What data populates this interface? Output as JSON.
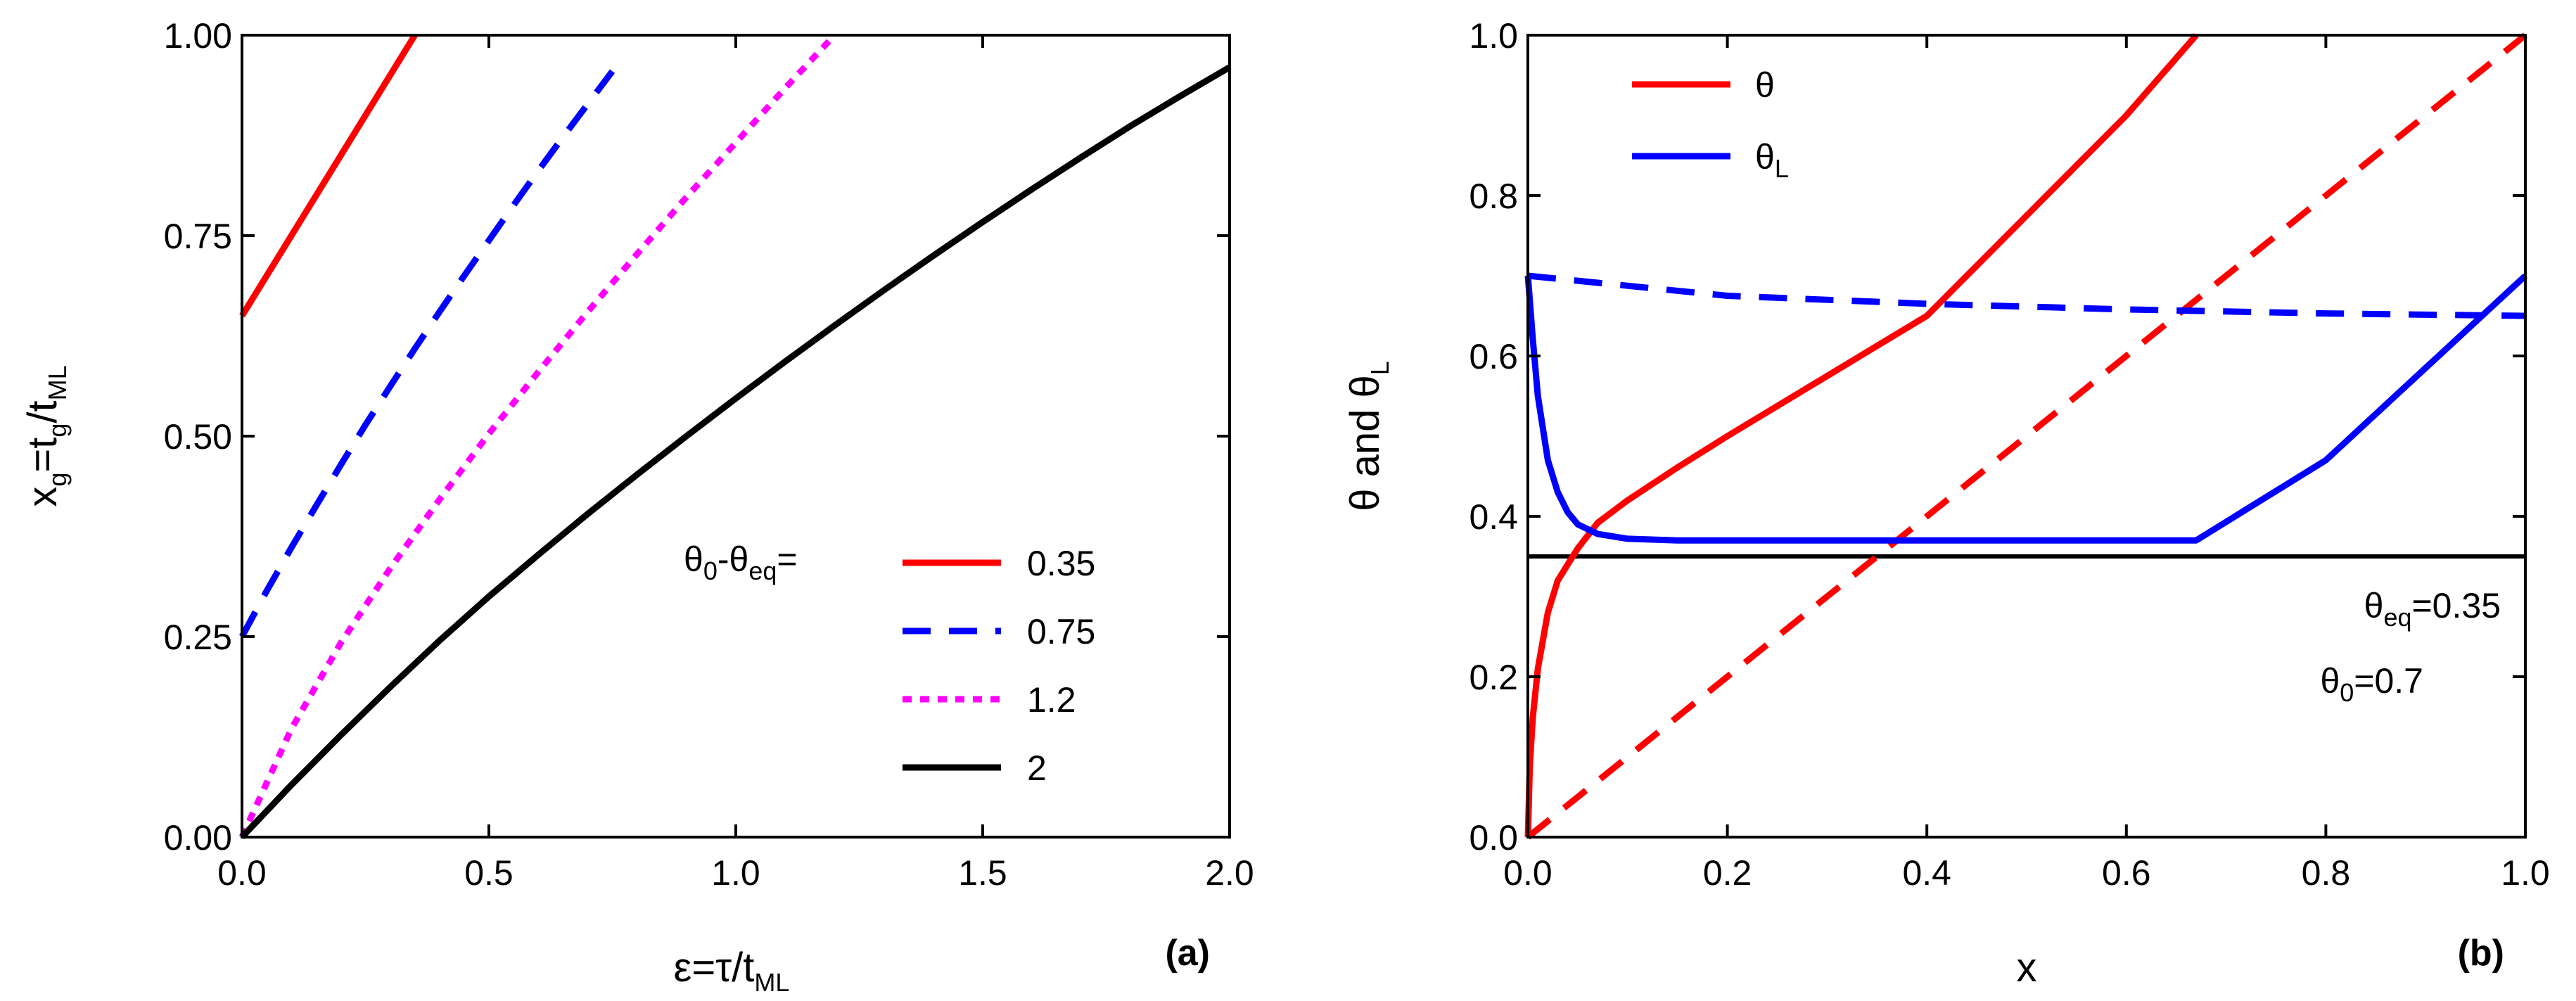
{
  "chart_data": [
    {
      "panel_label": "(a)",
      "type": "line",
      "xlabel": {
        "main": "ε=τ/t",
        "sub": "ML"
      },
      "ylabel": {
        "main": "x",
        "sub1": "g",
        "mid": "=t",
        "sub2": "g",
        "end": "/t",
        "sub3": "ML"
      },
      "xlim": [
        0,
        2
      ],
      "ylim": [
        0,
        1
      ],
      "x_ticks": [
        0.0,
        0.5,
        1.0,
        1.5,
        2.0
      ],
      "x_tick_labels": [
        "0.0",
        "0.5",
        "1.0",
        "1.5",
        "2.0"
      ],
      "y_ticks": [
        0.0,
        0.25,
        0.5,
        0.75,
        1.0
      ],
      "y_tick_labels": [
        "0.00",
        "0.25",
        "0.50",
        "0.75",
        "1.00"
      ],
      "legend": {
        "title_main": "θ",
        "title_sub1": "0",
        "title_mid": "-θ",
        "title_sub2": "eq",
        "title_end": "=",
        "placement": "lower-right"
      },
      "series": [
        {
          "name": "0.35",
          "color": "#ff0000",
          "dash": "solid",
          "x": [
            0,
            0.35
          ],
          "y": [
            0.65,
            1.0
          ]
        },
        {
          "name": "0.75",
          "color": "#0000ff",
          "dash": "dash",
          "x": [
            0,
            0.05,
            0.1,
            0.15,
            0.2,
            0.25,
            0.3,
            0.35,
            0.4,
            0.45,
            0.5,
            0.55,
            0.6,
            0.65,
            0.7,
            0.75
          ],
          "y": [
            0.25,
            0.307,
            0.361,
            0.413,
            0.464,
            0.514,
            0.562,
            0.609,
            0.655,
            0.7,
            0.744,
            0.788,
            0.831,
            0.873,
            0.914,
            0.955
          ]
        },
        {
          "name": "1.2",
          "color": "#ff00ff",
          "dash": "dot",
          "x": [
            0,
            0.1,
            0.2,
            0.3,
            0.4,
            0.5,
            0.6,
            0.7,
            0.8,
            0.9,
            1.0,
            1.1,
            1.2
          ],
          "y": [
            0.0,
            0.135,
            0.242,
            0.335,
            0.421,
            0.503,
            0.58,
            0.655,
            0.727,
            0.798,
            0.866,
            0.934,
            1.0
          ]
        },
        {
          "name": "2",
          "color": "#000000",
          "dash": "solid",
          "x": [
            0,
            0.1,
            0.2,
            0.3,
            0.4,
            0.5,
            0.6,
            0.7,
            0.8,
            0.9,
            1.0,
            1.1,
            1.2,
            1.3,
            1.4,
            1.5,
            1.6,
            1.7,
            1.8,
            1.9,
            2.0
          ],
          "y": [
            0.0,
            0.065,
            0.127,
            0.187,
            0.245,
            0.3,
            0.352,
            0.403,
            0.452,
            0.5,
            0.547,
            0.593,
            0.638,
            0.682,
            0.725,
            0.767,
            0.808,
            0.848,
            0.887,
            0.924,
            0.96
          ]
        }
      ]
    },
    {
      "panel_label": "(b)",
      "type": "line",
      "xlabel": {
        "main": "x"
      },
      "ylabel": {
        "main": "θ and θ",
        "sub": "L"
      },
      "xlim": [
        0,
        1
      ],
      "ylim": [
        0,
        1
      ],
      "x_ticks": [
        0.0,
        0.2,
        0.4,
        0.6,
        0.8,
        1.0
      ],
      "x_tick_labels": [
        "0.0",
        "0.2",
        "0.4",
        "0.6",
        "0.8",
        "1.0"
      ],
      "y_ticks": [
        0.0,
        0.2,
        0.4,
        0.6,
        0.8,
        1.0
      ],
      "y_tick_labels": [
        "0.0",
        "0.2",
        "0.4",
        "0.6",
        "0.8",
        "1.0"
      ],
      "legend": {
        "placement": "top-left",
        "entries": [
          {
            "main": "θ",
            "sub": "",
            "color": "#ff0000"
          },
          {
            "main": "θ",
            "sub": "L",
            "color": "#0000ff"
          }
        ]
      },
      "annotations": [
        {
          "main": "θ",
          "sub": "eq",
          "value": "=0.35"
        },
        {
          "main": "θ",
          "sub": "0",
          "value": "=0.7"
        }
      ],
      "hlines": [
        {
          "y": 0.35,
          "color": "#000000"
        }
      ],
      "series": [
        {
          "name": "θ",
          "color": "#ff0000",
          "dash": "solid",
          "x": [
            0,
            0.002,
            0.005,
            0.01,
            0.02,
            0.03,
            0.04,
            0.05,
            0.07,
            0.1,
            0.15,
            0.2,
            0.3,
            0.4,
            0.5,
            0.6,
            0.67
          ],
          "y": [
            0.0,
            0.09,
            0.15,
            0.21,
            0.28,
            0.32,
            0.34,
            0.36,
            0.392,
            0.42,
            0.461,
            0.5,
            0.575,
            0.65,
            0.775,
            0.9,
            1.0
          ]
        },
        {
          "name": "θ dashed",
          "color": "#ff0000",
          "dash": "dash",
          "x": [
            0,
            1.0
          ],
          "y": [
            0.0,
            1.0
          ]
        },
        {
          "name": "θL",
          "color": "#0000ff",
          "dash": "solid",
          "x": [
            0,
            0.005,
            0.01,
            0.02,
            0.03,
            0.04,
            0.05,
            0.07,
            0.1,
            0.15,
            0.2,
            0.4,
            0.6,
            0.67,
            0.8,
            0.9,
            1.0
          ],
          "y": [
            0.7,
            0.62,
            0.55,
            0.47,
            0.43,
            0.405,
            0.39,
            0.378,
            0.372,
            0.37,
            0.37,
            0.37,
            0.37,
            0.37,
            0.47,
            0.585,
            0.7
          ]
        },
        {
          "name": "θL dashed",
          "color": "#0000ff",
          "dash": "dash",
          "x": [
            0,
            0.2,
            0.4,
            0.6,
            0.8,
            1.0
          ],
          "y": [
            0.7,
            0.675,
            0.665,
            0.658,
            0.653,
            0.65
          ]
        }
      ]
    }
  ]
}
